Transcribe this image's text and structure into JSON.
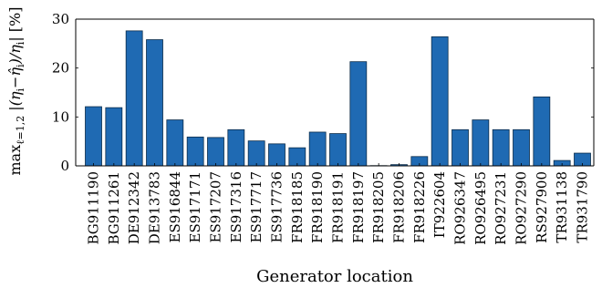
{
  "chart_data": {
    "type": "bar",
    "categories": [
      "BG911190",
      "BG911261",
      "DE912342",
      "DE913783",
      "ES916844",
      "ES917171",
      "ES917207",
      "ES917316",
      "ES917717",
      "ES917736",
      "FR918185",
      "FR918190",
      "FR918191",
      "FR918197",
      "FR918205",
      "FR918206",
      "FR918226",
      "IT922604",
      "RO926347",
      "RO926495",
      "RO927231",
      "RO927290",
      "RS927900",
      "TR931138",
      "TR931790"
    ],
    "values": [
      12.1,
      11.9,
      27.6,
      25.8,
      9.4,
      5.9,
      5.8,
      7.4,
      5.1,
      4.5,
      3.7,
      6.9,
      6.6,
      21.3,
      0.05,
      0.25,
      1.9,
      26.4,
      7.4,
      9.4,
      7.4,
      7.4,
      14.1,
      1.1,
      2.6
    ],
    "xlabel": "Generator location",
    "ylabel": "max_{ℓ=1,2} |(η_i − η̂_i^s)/η_i| [%]",
    "ylim": [
      0,
      30
    ],
    "yticks": [
      0,
      10,
      20,
      30
    ],
    "bar_color": "#1f6ab3",
    "bar_edge_color": "#0b2c4a",
    "grid": false
  }
}
